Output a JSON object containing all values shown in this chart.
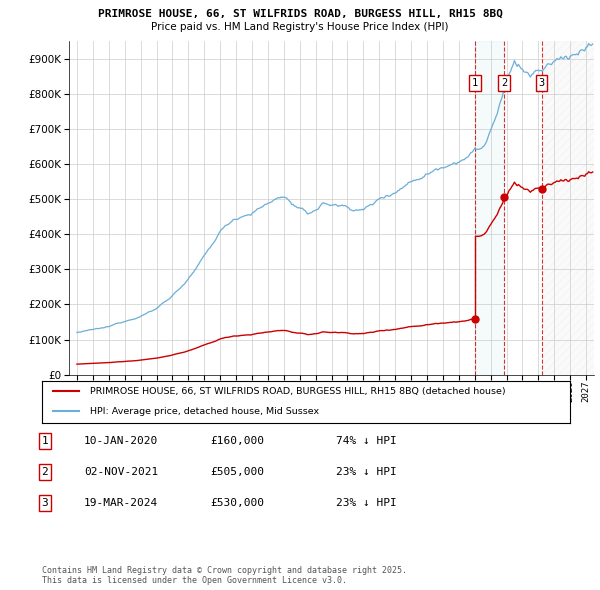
{
  "title1": "PRIMROSE HOUSE, 66, ST WILFRIDS ROAD, BURGESS HILL, RH15 8BQ",
  "title2": "Price paid vs. HM Land Registry's House Price Index (HPI)",
  "legend1": "PRIMROSE HOUSE, 66, ST WILFRIDS ROAD, BURGESS HILL, RH15 8BQ (detached house)",
  "legend2": "HPI: Average price, detached house, Mid Sussex",
  "sale1_date": "10-JAN-2020",
  "sale1_price": 160000,
  "sale1_hpi": "74% ↓ HPI",
  "sale2_date": "02-NOV-2021",
  "sale2_price": 505000,
  "sale2_hpi": "23% ↓ HPI",
  "sale3_date": "19-MAR-2024",
  "sale3_price": 530000,
  "sale3_hpi": "23% ↓ HPI",
  "footer": "Contains HM Land Registry data © Crown copyright and database right 2025.\nThis data is licensed under the Open Government Licence v3.0.",
  "hpi_color": "#6baed6",
  "sale_color": "#cc0000",
  "background_color": "#ffffff",
  "grid_color": "#cccccc",
  "ylim_max": 950000,
  "sale1_year": 2020.03,
  "sale2_year": 2021.84,
  "sale3_year": 2024.21,
  "xmin": 1994.5,
  "xmax": 2027.5
}
